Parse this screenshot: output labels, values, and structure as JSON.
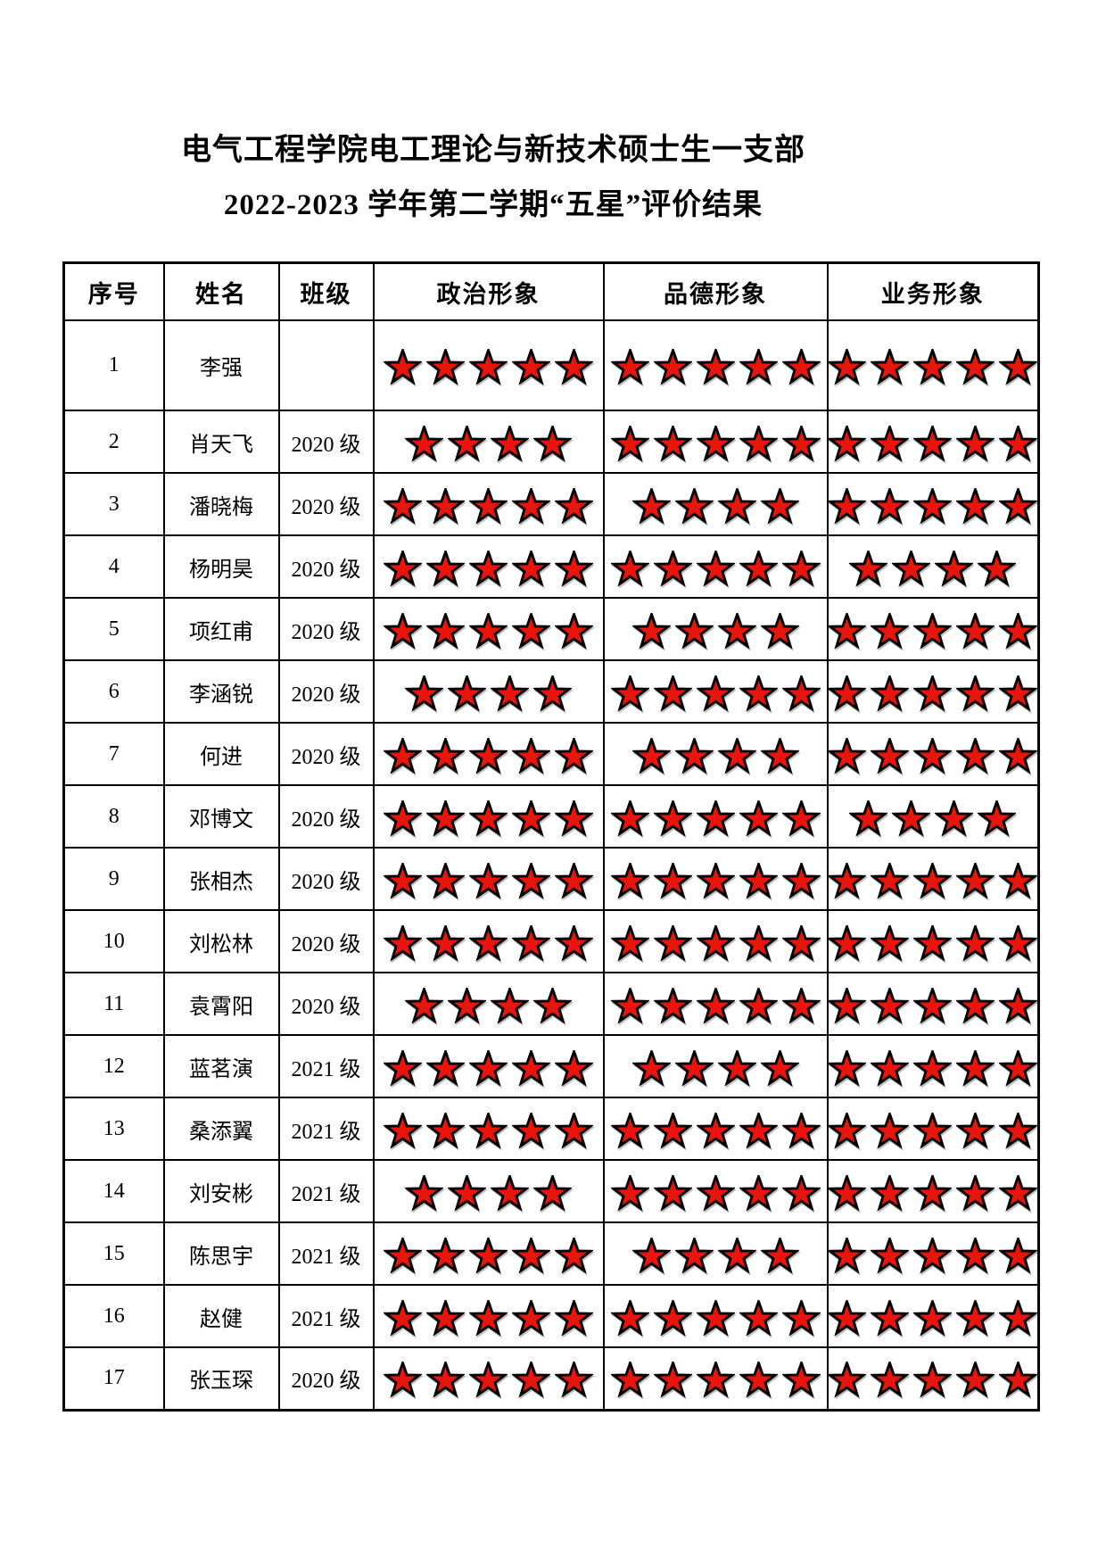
{
  "document": {
    "title_line1": "电气工程学院电工理论与新技术硕士生一支部",
    "title_line2": "2022-2023 学年第二学期“五星”评价结果"
  },
  "table": {
    "headers": {
      "no": "序号",
      "name": "姓名",
      "class": "班级",
      "political": "政治形象",
      "moral": "品德形象",
      "professional": "业务形象"
    },
    "star": {
      "icon": "star-icon",
      "fill": "#e8150c",
      "outline": "#000000",
      "max": 5
    },
    "rows": [
      {
        "no": "1",
        "name": "李强",
        "class": "",
        "political": 5,
        "moral": 5,
        "professional": 5
      },
      {
        "no": "2",
        "name": "肖天飞",
        "class": "2020 级",
        "political": 4,
        "moral": 5,
        "professional": 5
      },
      {
        "no": "3",
        "name": "潘晓梅",
        "class": "2020 级",
        "political": 5,
        "moral": 4,
        "professional": 5
      },
      {
        "no": "4",
        "name": "杨明昊",
        "class": "2020 级",
        "political": 5,
        "moral": 5,
        "professional": 4
      },
      {
        "no": "5",
        "name": "项红甫",
        "class": "2020 级",
        "political": 5,
        "moral": 4,
        "professional": 5
      },
      {
        "no": "6",
        "name": "李涵锐",
        "class": "2020 级",
        "political": 4,
        "moral": 5,
        "professional": 5
      },
      {
        "no": "7",
        "name": "何进",
        "class": "2020 级",
        "political": 5,
        "moral": 4,
        "professional": 5
      },
      {
        "no": "8",
        "name": "邓博文",
        "class": "2020 级",
        "political": 5,
        "moral": 5,
        "professional": 4
      },
      {
        "no": "9",
        "name": "张相杰",
        "class": "2020 级",
        "political": 5,
        "moral": 5,
        "professional": 5
      },
      {
        "no": "10",
        "name": "刘松林",
        "class": "2020 级",
        "political": 5,
        "moral": 5,
        "professional": 5
      },
      {
        "no": "11",
        "name": "袁霄阳",
        "class": "2020 级",
        "political": 4,
        "moral": 5,
        "professional": 5
      },
      {
        "no": "12",
        "name": "蓝茗演",
        "class": "2021 级",
        "political": 5,
        "moral": 4,
        "professional": 5
      },
      {
        "no": "13",
        "name": "桑添翼",
        "class": "2021 级",
        "political": 5,
        "moral": 5,
        "professional": 5
      },
      {
        "no": "14",
        "name": "刘安彬",
        "class": "2021 级",
        "political": 4,
        "moral": 5,
        "professional": 5
      },
      {
        "no": "15",
        "name": "陈思宇",
        "class": "2021 级",
        "political": 5,
        "moral": 4,
        "professional": 5
      },
      {
        "no": "16",
        "name": "赵健",
        "class": "2021 级",
        "political": 5,
        "moral": 5,
        "professional": 5
      },
      {
        "no": "17",
        "name": "张玉琛",
        "class": "2020 级",
        "political": 5,
        "moral": 5,
        "professional": 5
      }
    ]
  }
}
